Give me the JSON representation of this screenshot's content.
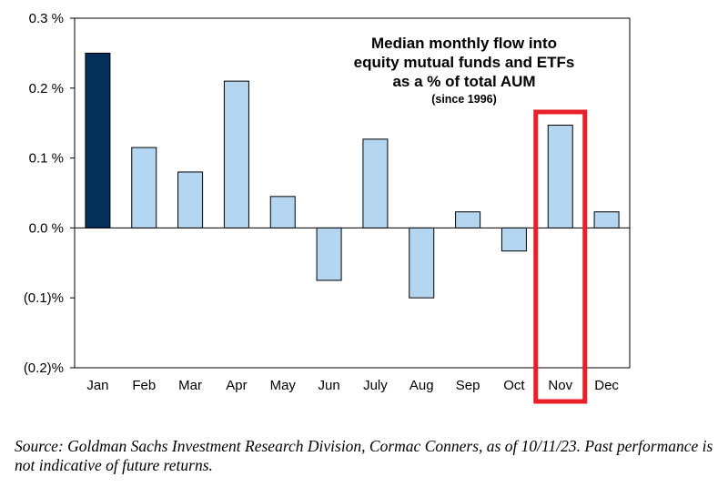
{
  "chart_data": {
    "type": "bar",
    "title": [
      "Median monthly flow into",
      "equity mutual funds and ETFs",
      "as a % of total AUM"
    ],
    "subtitle": "(since 1996)",
    "categories": [
      "Jan",
      "Feb",
      "Mar",
      "Apr",
      "May",
      "Jun",
      "July",
      "Aug",
      "Sep",
      "Oct",
      "Nov",
      "Dec"
    ],
    "values": [
      0.25,
      0.115,
      0.08,
      0.21,
      0.045,
      -0.075,
      0.127,
      -0.1,
      0.023,
      -0.033,
      0.147,
      0.023
    ],
    "ylim": [
      -0.2,
      0.3
    ],
    "yticks": [
      0.3,
      0.2,
      0.1,
      0.0,
      -0.1,
      -0.2
    ],
    "ytick_labels": [
      "0.3 %",
      "0.2 %",
      "0.1 %",
      "0.0 %",
      "(0.1)%",
      "(0.2)%"
    ],
    "highlight_category": "Jan",
    "highlight_color": "#03305a",
    "bar_color": "#b5d6f0",
    "annotation_box_category": "Nov",
    "annotation_box_color": "#e8202a",
    "grid": false
  },
  "source_note": "Source: Goldman Sachs Investment Research Division, Cormac Conners, as of 10/11/23. Past performance is not indicative of future returns."
}
